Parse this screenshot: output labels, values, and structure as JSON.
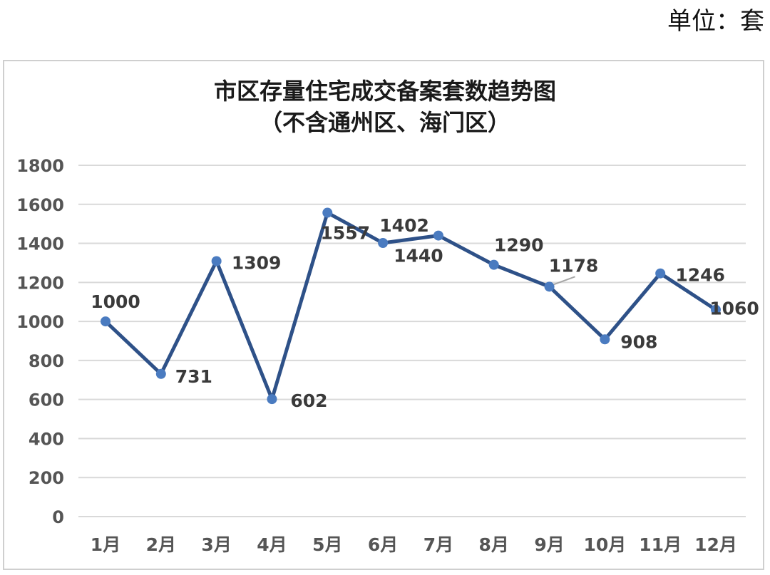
{
  "unit_label": "单位：套",
  "chart_data": {
    "type": "line",
    "title": "市区存量住宅成交备案套数趋势图",
    "subtitle": "（不含通州区、海门区）",
    "categories": [
      "1月",
      "2月",
      "3月",
      "4月",
      "5月",
      "6月",
      "7月",
      "8月",
      "9月",
      "10月",
      "11月",
      "12月"
    ],
    "series": [
      {
        "values": [
          1000,
          731,
          1309,
          602,
          1557,
          1402,
          1440,
          1290,
          1178,
          908,
          1246,
          1060
        ]
      }
    ],
    "data_labels": [
      "1000",
      "731",
      "1309",
      "602",
      "1557",
      "1402",
      "1440",
      "1290",
      "1178",
      "908",
      "1246",
      "1060"
    ],
    "yticks": [
      "0",
      "200",
      "400",
      "600",
      "800",
      "1000",
      "1200",
      "1400",
      "1600",
      "1800"
    ],
    "ylim": [
      0,
      1800
    ],
    "grid": true,
    "legend": "none",
    "line_color": "#2e5188",
    "marker_color": "#4a7bc0",
    "grid_color": "#d9d9d9"
  }
}
